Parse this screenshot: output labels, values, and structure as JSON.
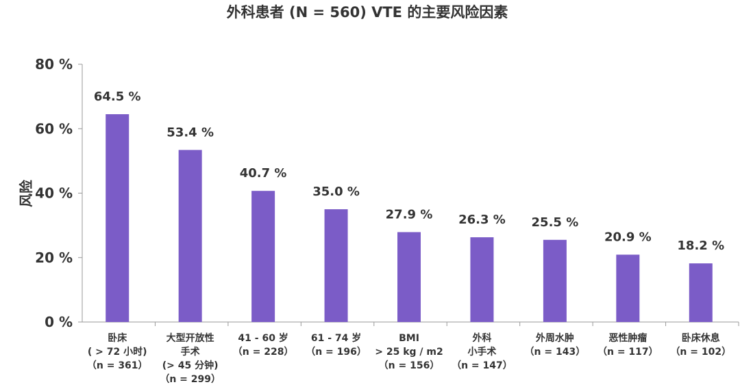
{
  "chart_data": {
    "type": "bar",
    "title": "外科患者 (N = 560) VTE 的主要风险因素",
    "ylabel": "风险",
    "xlabel": "",
    "ylim": [
      0,
      80
    ],
    "yticks": [
      "0 %",
      "20 %",
      "40 %",
      "60 %",
      "80 %"
    ],
    "ytick_values": [
      0,
      20,
      40,
      60,
      80
    ],
    "grid": false,
    "bar_color": "#7b5cc7",
    "categories": [
      [
        "卧床",
        "( > 72 小时)",
        "（n = 361）"
      ],
      [
        "大型开放性",
        "手术",
        "(> 45 分钟)",
        "（n = 299）"
      ],
      [
        "41 - 60 岁",
        "（n = 228）"
      ],
      [
        "61 - 74 岁",
        "（n = 196）"
      ],
      [
        "BMI",
        "> 25 kg / m2",
        "（n = 156）"
      ],
      [
        "外科",
        "小手术",
        "（n = 147）"
      ],
      [
        "外周水肿",
        "（n = 143）"
      ],
      [
        "恶性肿瘤",
        "（n = 117）"
      ],
      [
        "卧床休息",
        "（n = 102）"
      ]
    ],
    "values": [
      64.5,
      53.4,
      40.7,
      35.0,
      27.9,
      26.3,
      25.5,
      20.9,
      18.2
    ],
    "data_labels": [
      "64.5 %",
      "53.4 %",
      "40.7 %",
      "35.0 %",
      "27.9 %",
      "26.3 %",
      "25.5 %",
      "20.9 %",
      "18.2 %"
    ]
  }
}
